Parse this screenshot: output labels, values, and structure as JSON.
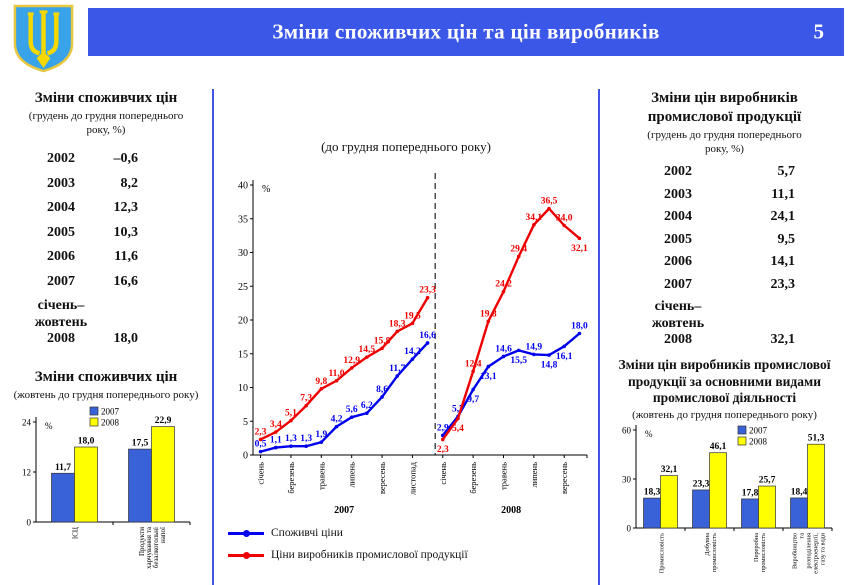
{
  "header": {
    "title": "Зміни споживчих цін та цін виробників",
    "page_number": "5",
    "bar_color": "#3a57e8"
  },
  "cpi_table": {
    "title": "Зміни споживчих цін",
    "subtitle": "(грудень до грудня попереднього року, %)",
    "rows": [
      {
        "label_lines": [
          "2002"
        ],
        "value": "–0,6"
      },
      {
        "label_lines": [
          "2003"
        ],
        "value": "8,2"
      },
      {
        "label_lines": [
          "2004"
        ],
        "value": "12,3"
      },
      {
        "label_lines": [
          "2005"
        ],
        "value": "10,3"
      },
      {
        "label_lines": [
          "2006"
        ],
        "value": "11,6"
      },
      {
        "label_lines": [
          "2007"
        ],
        "value": "16,6"
      },
      {
        "label_lines": [
          "січень–",
          "жовтень",
          "2008"
        ],
        "value": "18,0"
      }
    ]
  },
  "ppi_table": {
    "title": "Зміни цін виробників промислової продукції",
    "subtitle": "(грудень до грудня попереднього року, %)",
    "rows": [
      {
        "label_lines": [
          "2002"
        ],
        "value": "5,7"
      },
      {
        "label_lines": [
          "2003"
        ],
        "value": "11,1"
      },
      {
        "label_lines": [
          "2004"
        ],
        "value": "24,1"
      },
      {
        "label_lines": [
          "2005"
        ],
        "value": "9,5"
      },
      {
        "label_lines": [
          "2006"
        ],
        "value": "14,1"
      },
      {
        "label_lines": [
          "2007"
        ],
        "value": "23,3"
      },
      {
        "label_lines": [
          "січень–",
          "жовтень",
          "2008"
        ],
        "value": "32,1"
      }
    ]
  },
  "chart_data": [
    {
      "id": "price-lines",
      "type": "line",
      "title": "(до грудня попереднього року)",
      "ylabel": "%",
      "ylim": [
        0,
        40
      ],
      "yticks": [
        0,
        5,
        10,
        15,
        20,
        25,
        30,
        35,
        40
      ],
      "divider": "dashed-between-years",
      "legend_position": "bottom-left",
      "groups": [
        {
          "year": "2007",
          "n": 12,
          "tick_positions": [
            0,
            2,
            4,
            6,
            8,
            10
          ],
          "tick_labels": [
            "січень",
            "березень",
            "травень",
            "липень",
            "вересень",
            "листопад"
          ]
        },
        {
          "year": "2008",
          "n": 10,
          "tick_positions": [
            0,
            2,
            4,
            6,
            8
          ],
          "tick_labels": [
            "січень",
            "березень",
            "травень",
            "липень",
            "вересень"
          ]
        }
      ],
      "series": [
        {
          "name": "Споживчі ціни",
          "color": "#0000ee",
          "values": [
            [
              0.5,
              1.1,
              1.3,
              1.3,
              1.9,
              4.2,
              5.6,
              6.2,
              8.6,
              11.7,
              14.2,
              16.6
            ],
            [
              2.9,
              5.7,
              9.7,
              13.1,
              14.6,
              15.5,
              14.9,
              14.8,
              16.1,
              18.0
            ]
          ],
          "label_side": [
            [
              "a",
              "a",
              "a",
              "a",
              "a",
              "a",
              "a",
              "a",
              "a",
              "a",
              "a",
              "a"
            ],
            [
              "a",
              "a",
              "b",
              "b",
              "a",
              "b",
              "a",
              "b",
              "b",
              "a"
            ]
          ]
        },
        {
          "name": "Ціни виробників промислової продукції",
          "color": "#ee0000",
          "values": [
            [
              2.3,
              3.4,
              5.1,
              7.3,
              9.8,
              11.0,
              12.9,
              14.5,
              15.8,
              18.3,
              19.5,
              23.3
            ],
            [
              2.3,
              5.4,
              12.4,
              19.8,
              24.2,
              29.4,
              34.1,
              36.5,
              34.0,
              32.1
            ]
          ],
          "label_side": [
            [
              "a",
              "a",
              "a",
              "a",
              "a",
              "a",
              "a",
              "a",
              "a",
              "a",
              "a",
              "a"
            ],
            [
              "b",
              "b",
              "a",
              "a",
              "a",
              "a",
              "a",
              "a",
              "a",
              "b"
            ]
          ]
        }
      ]
    },
    {
      "id": "cpi-bars",
      "type": "bar",
      "title": "Зміни споживчих цін",
      "subtitle": "(жовтень до грудня попереднього року)",
      "ylabel": "%",
      "ylim": [
        0,
        24
      ],
      "yticks": [
        0,
        12,
        24
      ],
      "legend_position": "top",
      "categories": [
        {
          "label": "ІСЦ",
          "lines": [
            "ІСЦ"
          ]
        },
        {
          "label": "Продукти харчування та безалкогольні напої",
          "lines": [
            "Продукти",
            "харчування та",
            "безалкогольні",
            "напої"
          ]
        }
      ],
      "series": [
        {
          "name": "2007",
          "color": "#3a62d8",
          "values": [
            11.7,
            17.5
          ]
        },
        {
          "name": "2008",
          "color": "#ffff00",
          "values": [
            18.0,
            22.9
          ]
        }
      ]
    },
    {
      "id": "ppi-bars",
      "type": "bar",
      "title": "Зміни цін виробників промислової продукції за основними видами промислової діяльності",
      "subtitle": "(жовтень до грудня попереднього року)",
      "ylabel": "%",
      "ylim": [
        0,
        60
      ],
      "yticks": [
        0,
        30,
        60
      ],
      "legend_position": "top-right",
      "categories": [
        {
          "label": "Промисловість",
          "lines": [
            "Промисловість"
          ]
        },
        {
          "label": "Добувна промисловість",
          "lines": [
            "Добувна",
            "промисловість"
          ]
        },
        {
          "label": "Переробна промисловість",
          "lines": [
            "Переробна",
            "промисловість"
          ]
        },
        {
          "label": "Виробництво та розподілення електроенергії, газу та води",
          "lines": [
            "Виробництво",
            "та",
            "розподілення",
            "електроенергії,",
            "газу та води"
          ]
        }
      ],
      "series": [
        {
          "name": "2007",
          "color": "#3a62d8",
          "values": [
            18.3,
            23.3,
            17.8,
            18.4
          ]
        },
        {
          "name": "2008",
          "color": "#ffff00",
          "values": [
            32.1,
            46.1,
            25.7,
            51.3
          ]
        }
      ]
    }
  ]
}
